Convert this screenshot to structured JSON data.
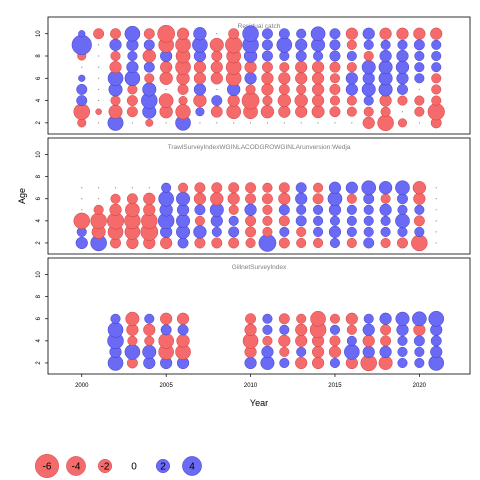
{
  "chart_data": {
    "type": "scatter",
    "xlabel": "Year",
    "ylabel": "Age",
    "xlim": [
      1998,
      2023
    ],
    "ylim": [
      1,
      11.5
    ],
    "x_ticks": [
      2000,
      2005,
      2010,
      2015,
      2020
    ],
    "y_ticks": [
      2,
      4,
      6,
      8,
      10
    ],
    "colors": {
      "positive": "#6a6af5",
      "negative": "#f56a6a",
      "border_pos": "#3030c0",
      "border_neg": "#c83030"
    },
    "panels": [
      {
        "title": "Residual catch",
        "years": [
          2000,
          2001,
          2002,
          2003,
          2004,
          2005,
          2006,
          2007,
          2008,
          2009,
          2010,
          2011,
          2012,
          2013,
          2014,
          2015,
          2016,
          2017,
          2018,
          2019,
          2020,
          2021
        ],
        "ages": [
          2,
          3,
          4,
          5,
          6,
          7,
          8,
          9,
          10
        ],
        "residuals": [
          [
            -0.8,
            0,
            2.6,
            0,
            -0.6,
            0,
            2.5,
            0,
            0,
            0,
            0,
            0,
            0,
            0,
            0,
            0,
            0,
            -1.5,
            -2.8,
            -0.8,
            0,
            -1.2
          ],
          [
            -2.8,
            -0.4,
            -2.0,
            -1.2,
            2.0,
            -1.8,
            -2.4,
            0.8,
            -1.4,
            -2.2,
            -2.2,
            -1.8,
            -1.5,
            -1.5,
            -1.7,
            -1.2,
            -1.0,
            -1.0,
            -1.0,
            0,
            -1.0,
            -3.0
          ],
          [
            1.2,
            0,
            -1.0,
            -1.2,
            2.8,
            -2.2,
            -0.8,
            -1.8,
            1.2,
            -1.5,
            -3.2,
            -1.0,
            -1.8,
            -1.8,
            -1.5,
            -1.0,
            -1.0,
            1.0,
            -1.5,
            -1.0,
            -1.0,
            -1.0
          ],
          [
            1.2,
            0,
            2.0,
            -1.0,
            2.0,
            0,
            -1.2,
            1.5,
            0,
            1.8,
            -1.0,
            -1.5,
            -1.2,
            -1.0,
            -1.5,
            -1.2,
            1.5,
            2.0,
            2.0,
            1.2,
            0,
            -1.0
          ],
          [
            0.5,
            0,
            2.5,
            2.5,
            -1.0,
            -1.8,
            -1.8,
            -1.5,
            -1.5,
            -2.5,
            1.5,
            -1.5,
            -1.5,
            -1.5,
            -1.5,
            -1.0,
            1.5,
            1.5,
            2.0,
            1.5,
            1.0,
            -1.0
          ],
          [
            0,
            0,
            -1.5,
            1.5,
            1.2,
            -1.5,
            -2.5,
            -1.5,
            -1.5,
            -2.5,
            -1.5,
            -1.2,
            -1.0,
            -1.5,
            -1.5,
            -1.2,
            -1.0,
            2.0,
            2.0,
            1.8,
            1.0,
            1.0
          ],
          [
            -0.8,
            0,
            -1.0,
            1.0,
            -1.8,
            1.5,
            -2.2,
            1.5,
            -1.2,
            -2.2,
            1.8,
            1.2,
            1.0,
            1.2,
            1.0,
            1.2,
            1.0,
            -1.0,
            1.5,
            1.5,
            1.0,
            1.0
          ],
          [
            4.2,
            0,
            1.5,
            1.5,
            1.2,
            -2.5,
            -2.5,
            2.5,
            -2.0,
            -3.0,
            2.8,
            1.2,
            2.5,
            1.5,
            2.0,
            1.2,
            -1.0,
            1.0,
            1.0,
            1.0,
            1.2,
            1.0
          ],
          [
            0.5,
            -1.2,
            -1.2,
            2.5,
            -1.2,
            -3.2,
            -1.5,
            1.8,
            0,
            -1.2,
            2.8,
            1.2,
            1.2,
            1.0,
            2.2,
            1.2,
            -1.5,
            1.5,
            -1.5,
            -1.5,
            -1.5,
            -1.5
          ]
        ]
      },
      {
        "title": "TrawlSurveyIndexWGINLACODGROWGINLArunversion:Wedja",
        "years": [
          2000,
          2001,
          2002,
          2003,
          2004,
          2005,
          2006,
          2007,
          2008,
          2009,
          2010,
          2011,
          2012,
          2013,
          2014,
          2015,
          2016,
          2017,
          2018,
          2019,
          2020,
          2021
        ],
        "ages": [
          2,
          3,
          4,
          5,
          6,
          7
        ],
        "residuals": [
          [
            1.5,
            2.8,
            -1.2,
            -1.5,
            -1.5,
            -1.5,
            1.2,
            -1.2,
            -1.2,
            -1.2,
            -1.0,
            3.2,
            -1.2,
            -1.0,
            -1.0,
            1.0,
            -1.0,
            1.2,
            -1.0,
            -1.2,
            -2.8,
            0
          ],
          [
            1.0,
            -2.0,
            -2.5,
            -2.5,
            -3.2,
            1.5,
            2.0,
            1.8,
            1.0,
            1.2,
            -1.2,
            -1.0,
            1.0,
            -1.0,
            1.0,
            1.5,
            1.0,
            1.0,
            1.0,
            1.0,
            1.0,
            0
          ],
          [
            -2.8,
            -2.8,
            -3.0,
            -2.8,
            -2.8,
            2.8,
            2.0,
            -1.0,
            1.5,
            1.0,
            -1.2,
            -1.0,
            -1.2,
            1.2,
            1.0,
            1.0,
            1.0,
            1.0,
            1.0,
            2.2,
            -1.2,
            0
          ],
          [
            0,
            -1.0,
            -1.5,
            -2.2,
            -1.5,
            1.8,
            1.5,
            1.2,
            2.0,
            -1.0,
            1.5,
            -1.0,
            1.2,
            1.0,
            1.0,
            1.5,
            1.0,
            1.0,
            1.5,
            1.0,
            1.0,
            0
          ],
          [
            0,
            0,
            -1.0,
            -1.2,
            -1.5,
            2.5,
            2.0,
            -1.5,
            -1.8,
            -1.5,
            -1.2,
            -1.2,
            -1.5,
            1.5,
            -1.2,
            2.2,
            -1.0,
            1.2,
            -1.0,
            1.2,
            -1.5,
            0
          ],
          [
            0,
            0,
            0,
            0,
            0,
            1.0,
            -1.0,
            -1.2,
            -1.2,
            -1.2,
            -1.2,
            -1.0,
            -1.2,
            1.2,
            -1.0,
            1.5,
            1.5,
            2.2,
            1.8,
            2.2,
            -1.8,
            0
          ]
        ]
      },
      {
        "title": "GillnetSurveyIndex",
        "years": [
          2002,
          2003,
          2004,
          2005,
          2006,
          2010,
          2011,
          2012,
          2013,
          2014,
          2015,
          2016,
          2017,
          2018,
          2019,
          2020,
          2021
        ],
        "ages": [
          2,
          3,
          4,
          5,
          6
        ],
        "residuals": [
          [
            2.5,
            -1.2,
            1.5,
            1.5,
            1.5,
            1.5,
            2.0,
            1.0,
            -1.5,
            -1.5,
            1.0,
            -1.5,
            -2.8,
            -2.0,
            1.0,
            1.0,
            2.5
          ],
          [
            1.5,
            2.5,
            2.0,
            -2.5,
            -2.5,
            -1.5,
            1.5,
            -1.0,
            1.0,
            -1.5,
            -1.5,
            2.5,
            1.5,
            1.5,
            1.0,
            1.0,
            1.5
          ],
          [
            2.8,
            -1.0,
            -1.0,
            -2.5,
            -1.8,
            -2.5,
            -1.0,
            -1.5,
            -1.5,
            -1.5,
            -1.2,
            1.0,
            -1.5,
            -1.2,
            1.0,
            1.2,
            1.2
          ],
          [
            2.5,
            -1.5,
            -1.5,
            1.2,
            1.2,
            -1.5,
            1.0,
            1.0,
            -1.5,
            -2.8,
            1.0,
            -1.0,
            1.5,
            -1.2,
            1.5,
            -1.5,
            1.5
          ],
          [
            1.0,
            -2.0,
            1.0,
            -1.5,
            -1.5,
            -1.2,
            1.0,
            -1.2,
            -1.0,
            -2.5,
            -1.0,
            -1.5,
            1.0,
            1.5,
            2.0,
            2.2,
            2.5
          ]
        ]
      }
    ],
    "legend": {
      "placement": "bottom-left",
      "entries": [
        {
          "label": "-6",
          "value": -6
        },
        {
          "label": "-4",
          "value": -4
        },
        {
          "label": "-2",
          "value": -2
        },
        {
          "label": "0",
          "value": 0
        },
        {
          "label": "2",
          "value": 2
        },
        {
          "label": "4",
          "value": 4
        }
      ]
    }
  }
}
